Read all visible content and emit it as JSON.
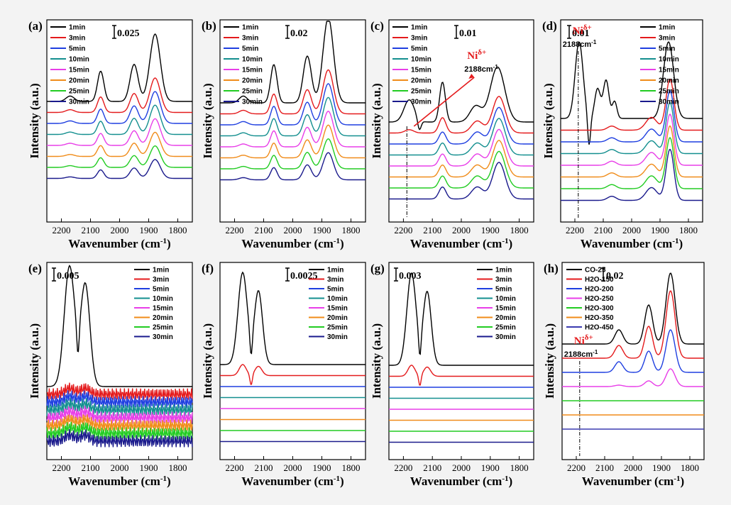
{
  "colors": {
    "series": [
      "#000000",
      "#e41a1c",
      "#1f3fe0",
      "#138f8f",
      "#e83ee8",
      "#f08c1a",
      "#22cc22",
      "#1a1a8c"
    ],
    "series_h": [
      "#000000",
      "#e41a1c",
      "#1f3fe0",
      "#e83ee8",
      "#22cc22",
      "#f08c1a",
      "#3b3bb0"
    ],
    "annotation": "#e41a1c"
  },
  "shared": {
    "xlabel": "Wavenumber (cm",
    "xlabel_sup": "-1",
    "xlabel_close": ")",
    "ylabel": "Intensity (a.u.)",
    "xticks": [
      "2200",
      "2100",
      "2000",
      "1900",
      "1800"
    ]
  },
  "chart_data": [
    {
      "panel": "(a)",
      "type": "line",
      "xlim": [
        2250,
        1750
      ],
      "scale_bar": "0.025",
      "legend": [
        "1min",
        "3min",
        "5min",
        "10min",
        "15min",
        "20min",
        "25min",
        "30min"
      ],
      "peaks": "1880, 1950, 2065",
      "title": "",
      "xlabel": "Wavenumber (cm-1)",
      "ylabel": "Intensity (a.u.)"
    },
    {
      "panel": "(b)",
      "type": "line",
      "xlim": [
        2250,
        1750
      ],
      "scale_bar": "0.02",
      "legend": [
        "1min",
        "3min",
        "5min",
        "10min",
        "15min",
        "20min",
        "25min",
        "30min"
      ],
      "peaks": "1875, 1945, 2065",
      "title": "",
      "xlabel": "Wavenumber (cm-1)",
      "ylabel": "Intensity (a.u.)"
    },
    {
      "panel": "(c)",
      "type": "line",
      "xlim": [
        2250,
        1750
      ],
      "scale_bar": "0.01",
      "legend": [
        "1min",
        "3min",
        "5min",
        "10min",
        "15min",
        "20min",
        "25min",
        "30min"
      ],
      "annotation": {
        "species": "Ni",
        "superscript": "δ+",
        "wavenumber": "2188cm",
        "wavenumber_sup": "-1"
      },
      "title": "",
      "xlabel": "Wavenumber (cm-1)",
      "ylabel": "Intensity (a.u.)"
    },
    {
      "panel": "(d)",
      "type": "line",
      "xlim": [
        2250,
        1750
      ],
      "scale_bar": "0.01",
      "legend": [
        "1min",
        "3min",
        "5min",
        "10min",
        "15min",
        "20min",
        "25min",
        "30min"
      ],
      "annotation": {
        "species": "Ni",
        "superscript": "δ+",
        "wavenumber": "2188cm",
        "wavenumber_sup": "-1"
      },
      "title": "",
      "xlabel": "Wavenumber (cm-1)",
      "ylabel": "Intensity (a.u.)"
    },
    {
      "panel": "(e)",
      "type": "line",
      "xlim": [
        2250,
        1750
      ],
      "scale_bar": "0.005",
      "legend": [
        "1min",
        "3min",
        "5min",
        "10min",
        "15min",
        "20min",
        "25min",
        "30min"
      ],
      "peaks": "2118, 2172",
      "title": "",
      "xlabel": "Wavenumber (cm-1)",
      "ylabel": "Intensity (a.u.)"
    },
    {
      "panel": "(f)",
      "type": "line",
      "xlim": [
        2250,
        1750
      ],
      "scale_bar": "0.0025",
      "legend": [
        "1min",
        "3min",
        "5min",
        "10min",
        "15min",
        "20min",
        "25min",
        "30min"
      ],
      "peaks": "2118, 2172",
      "title": "",
      "xlabel": "Wavenumber (cm-1)",
      "ylabel": "Intensity (a.u.)"
    },
    {
      "panel": "(g)",
      "type": "line",
      "xlim": [
        2250,
        1750
      ],
      "scale_bar": "0.003",
      "legend": [
        "1min",
        "3min",
        "5min",
        "10min",
        "15min",
        "20min",
        "25min",
        "30min"
      ],
      "peaks": "2118, 2172",
      "title": "",
      "xlabel": "Wavenumber (cm-1)",
      "ylabel": "Intensity (a.u.)"
    },
    {
      "panel": "(h)",
      "type": "line",
      "xlim": [
        2250,
        1750
      ],
      "scale_bar": "0.02",
      "legend": [
        "CO-25",
        "H2O-150",
        "H2O-200",
        "H2O-250",
        "H2O-300",
        "H2O-350",
        "H2O-450"
      ],
      "annotation": {
        "species": "Ni",
        "superscript": "δ+",
        "wavenumber": "2188cm",
        "wavenumber_sup": "-1"
      },
      "title": "",
      "xlabel": "Wavenumber (cm-1)",
      "ylabel": "Intensity (a.u.)"
    }
  ]
}
